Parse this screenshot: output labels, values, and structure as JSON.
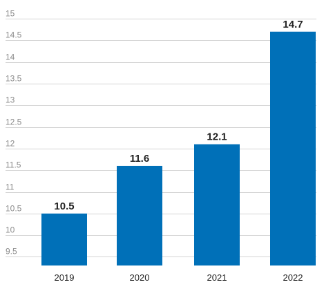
{
  "chart_data": {
    "type": "bar",
    "categories": [
      "2019",
      "2020",
      "2021",
      "2022"
    ],
    "values": [
      10.5,
      11.6,
      12.1,
      14.7
    ],
    "data_labels": [
      "10.5",
      "11.6",
      "12.1",
      "14.7"
    ],
    "yticks": [
      "9.5",
      "10",
      "10.5",
      "11",
      "11.5",
      "12",
      "12.5",
      "13",
      "13.5",
      "14",
      "14.5",
      "15"
    ],
    "ylim": [
      9.3,
      15
    ],
    "grid": true,
    "title": "",
    "xlabel": "",
    "ylabel": "",
    "bar_color": "#0070b8"
  }
}
